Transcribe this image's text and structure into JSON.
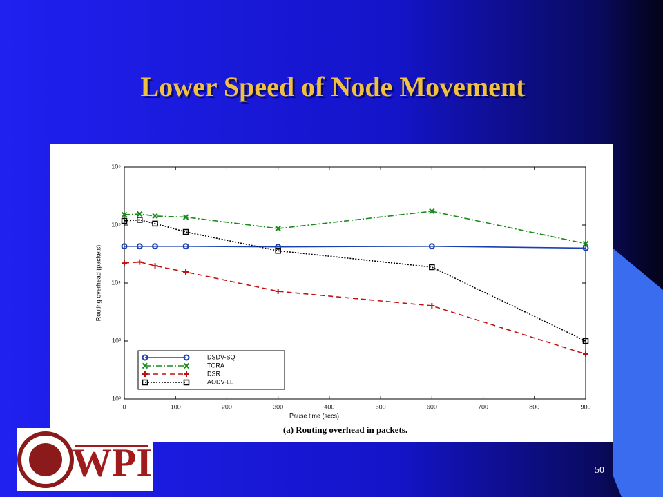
{
  "slide": {
    "title": "Lower Speed of Node Movement",
    "page_number": "50",
    "logo_text": "WPI"
  },
  "chart_data": {
    "type": "line",
    "caption": "(a) Routing overhead in packets.",
    "xlabel": "Pause time (secs)",
    "ylabel": "Routing overhead (packets)",
    "x": [
      0,
      30,
      60,
      120,
      300,
      600,
      900
    ],
    "series": [
      {
        "name": "DSDV-SQ",
        "color": "#1a3fb0",
        "values": [
          43000,
          43000,
          43000,
          43000,
          42000,
          43000,
          40000
        ]
      },
      {
        "name": "TORA",
        "color": "#1a8a1a",
        "values": [
          151000,
          155000,
          143000,
          137000,
          87000,
          173000,
          47700
        ]
      },
      {
        "name": "DSR",
        "color": "#c01010",
        "values": [
          22100,
          23000,
          19800,
          15500,
          7200,
          4050,
          594
        ]
      },
      {
        "name": "AODV-LL",
        "color": "#000000",
        "values": [
          118000,
          123000,
          106000,
          76000,
          36000,
          18800,
          1000
        ]
      }
    ],
    "xlim": [
      0,
      900
    ],
    "xticks": [
      0,
      100,
      200,
      300,
      400,
      500,
      600,
      700,
      800,
      900
    ],
    "ylim": [
      100,
      1000000
    ],
    "yticks": [
      {
        "value": 100,
        "label": "10²"
      },
      {
        "value": 1000,
        "label": "10³"
      },
      {
        "value": 10000,
        "label": "10⁴"
      },
      {
        "value": 100000,
        "label": "10⁵"
      },
      {
        "value": 1000000,
        "label": "10⁶"
      }
    ],
    "log_y": true,
    "legend": "lower left"
  }
}
